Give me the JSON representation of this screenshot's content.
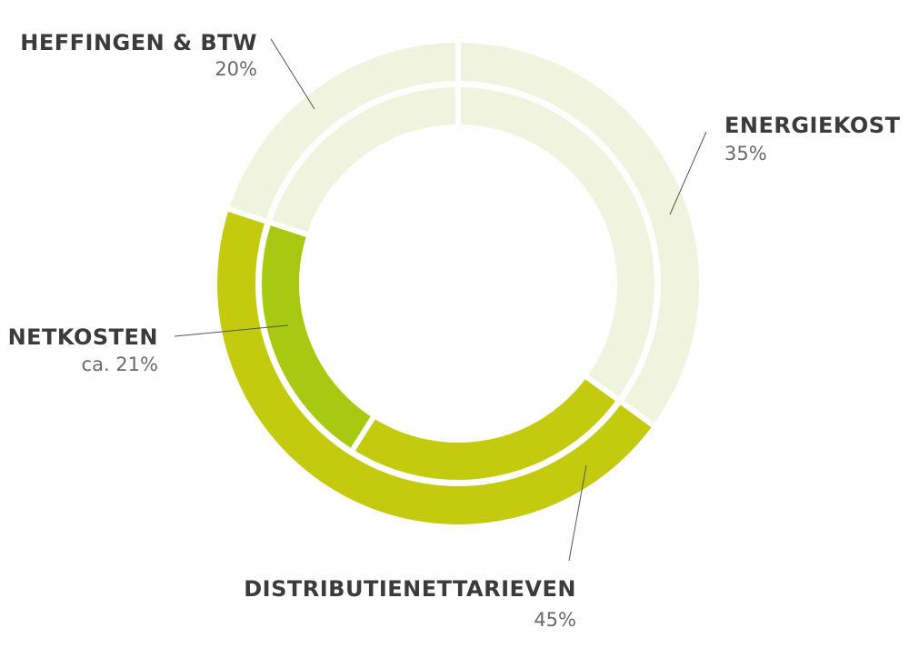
{
  "chart_data": {
    "type": "donut",
    "rings": [
      {
        "ring": "outer",
        "segments": [
          {
            "label": "ENERGIEKOST",
            "value": 35,
            "value_text": "35%",
            "color": "#f0f3dd"
          },
          {
            "label": "DISTRIBUTIENETTARIEVEN",
            "value": 45,
            "value_text": "45%",
            "color": "#c4cb0e"
          },
          {
            "label": "HEFFINGEN & BTW",
            "value": 20,
            "value_text": "20%",
            "color": "#f0f3dd"
          }
        ]
      },
      {
        "ring": "inner",
        "segments": [
          {
            "label": "ENERGIEKOST",
            "value": 35,
            "color": "#f0f3dd"
          },
          {
            "label": "DISTRIBUTIENETTARIEVEN",
            "value": 24,
            "color": "#c4cb0e"
          },
          {
            "label": "NETKOSTEN",
            "value": 21,
            "value_text": "ca. 21%",
            "color": "#a9c811"
          },
          {
            "label": "HEFFINGEN & BTW",
            "value": 20,
            "color": "#f0f3dd"
          }
        ]
      }
    ],
    "labels": [
      {
        "name": "HEFFINGEN & BTW",
        "value": "20%"
      },
      {
        "name": "ENERGIEKOST",
        "value": "35%"
      },
      {
        "name": "NETKOSTEN",
        "value": "ca. 21%"
      },
      {
        "name": "DISTRIBUTIENETTARIEVEN",
        "value": "45%"
      }
    ]
  }
}
